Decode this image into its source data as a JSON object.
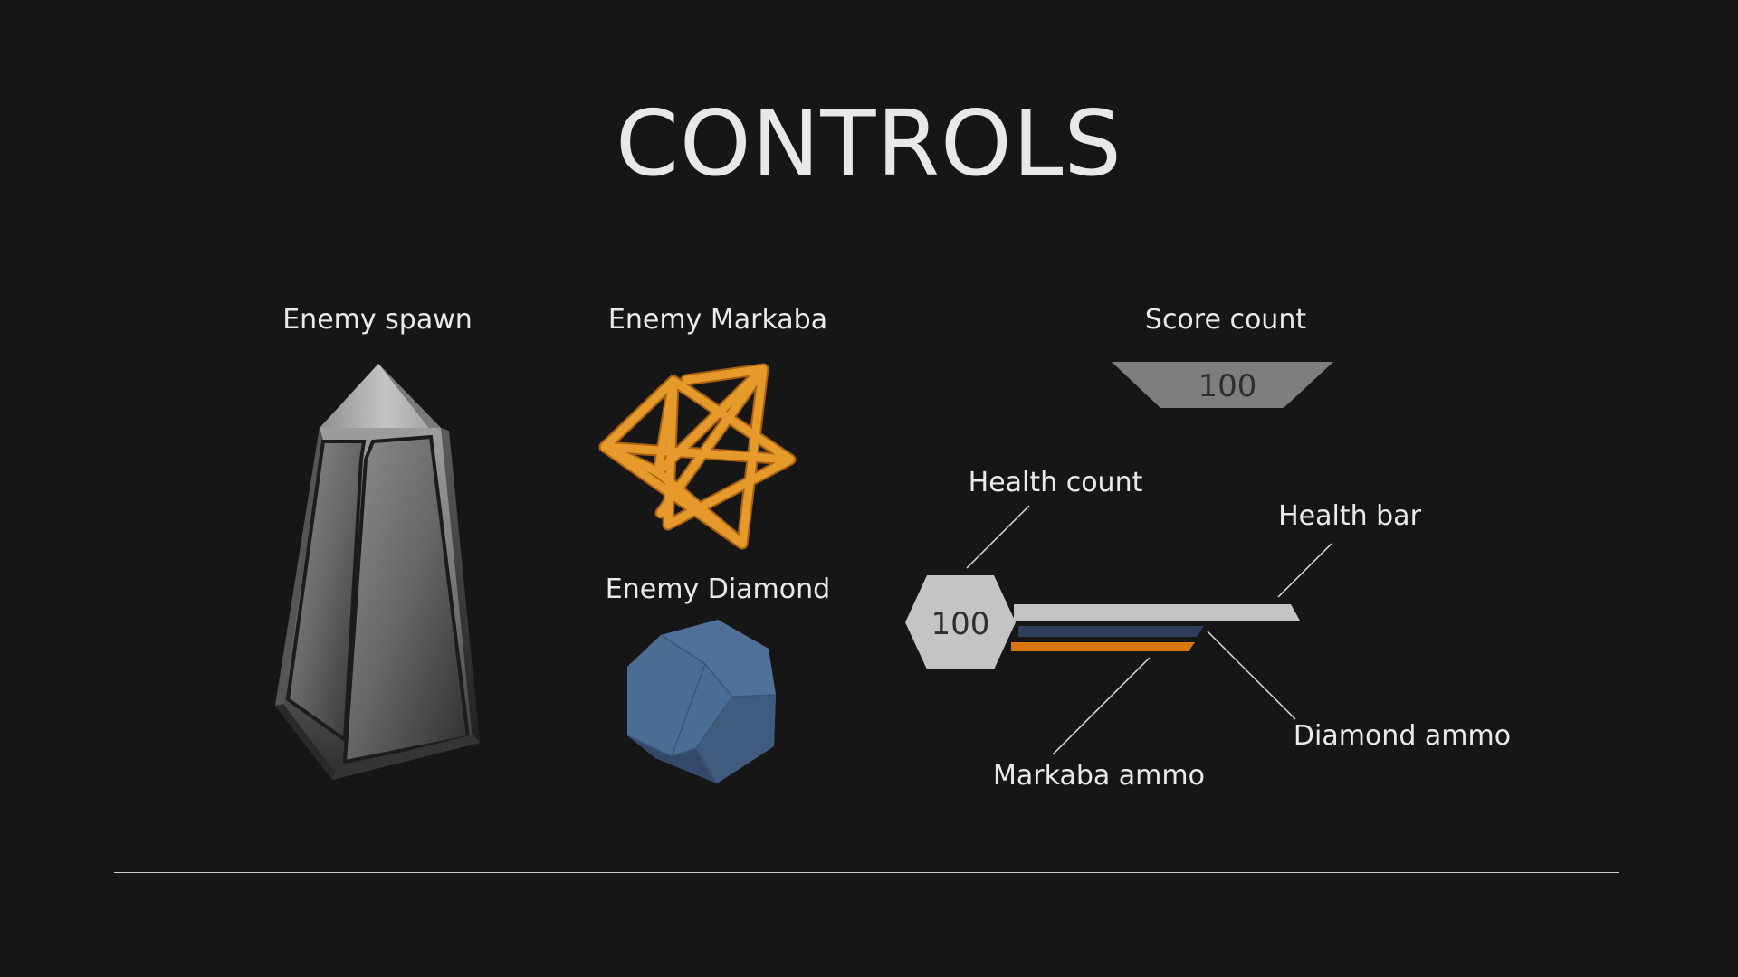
{
  "page": {
    "title": "CONTROLS"
  },
  "labels": {
    "enemy_spawn": "Enemy spawn",
    "enemy_markaba": "Enemy Markaba",
    "enemy_diamond": "Enemy Diamond",
    "score_count": "Score count",
    "health_count": "Health count",
    "health_bar": "Health bar",
    "markaba_ammo": "Markaba ammo",
    "diamond_ammo": "Diamond ammo"
  },
  "hud": {
    "score_value": "100",
    "health_value": "100",
    "health_fraction": 1.0,
    "diamond_ammo_fraction": 1.0,
    "markaba_ammo_fraction": 1.0
  },
  "colors": {
    "background": "#171617",
    "text": "#ece9ec",
    "markaba": "#e4992a",
    "diamond": "#4b6a8f",
    "hud_gray": "#c4c4c6",
    "score_gray": "#7d7e80",
    "diamond_ammo_bar": "#2e3e5c",
    "markaba_ammo_bar": "#d9770d"
  },
  "icons": {
    "enemy_spawn": "obelisk-icon",
    "enemy_markaba": "star-tetrahedron-icon",
    "enemy_diamond": "dodecahedron-icon"
  }
}
